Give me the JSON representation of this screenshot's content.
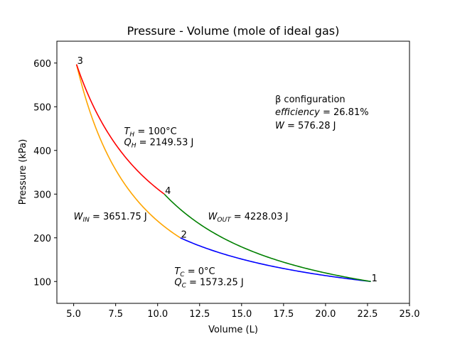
{
  "chart_data": {
    "type": "line",
    "title": "Pressure - Volume (mole of ideal gas)",
    "xlabel": "Volume (L)",
    "ylabel": "Pressure (kPa)",
    "xlim": [
      4.0,
      25.0
    ],
    "ylim": [
      50,
      650
    ],
    "xticks": [
      5.0,
      7.5,
      10.0,
      12.5,
      15.0,
      17.5,
      20.0,
      22.5,
      25.0
    ],
    "xtick_labels": [
      "5.0",
      "7.5",
      "10.0",
      "12.5",
      "15.0",
      "17.5",
      "20.0",
      "22.5",
      "25.0"
    ],
    "yticks": [
      100,
      200,
      300,
      400,
      500,
      600
    ],
    "ytick_labels": [
      "100",
      "200",
      "300",
      "400",
      "500",
      "600"
    ],
    "grid": false,
    "series": [
      {
        "color": "#0000ff",
        "from": "1",
        "to": "2",
        "v_start": 22.7,
        "v_end": 11.35,
        "p_start": 100,
        "p_end": 200
      },
      {
        "color": "#ffa500",
        "from": "2",
        "to": "3",
        "v_start": 11.35,
        "v_end": 5.17,
        "p_start": 200,
        "p_end": 597
      },
      {
        "color": "#ff0000",
        "from": "3",
        "to": "4",
        "v_start": 5.17,
        "v_end": 10.4,
        "p_start": 597,
        "p_end": 300
      },
      {
        "color": "#008000",
        "from": "4",
        "to": "1",
        "v_start": 10.4,
        "v_end": 22.7,
        "p_start": 300,
        "p_end": 100
      }
    ],
    "points": [
      {
        "label": "1",
        "v": 22.7,
        "p": 100
      },
      {
        "label": "2",
        "v": 11.35,
        "p": 200
      },
      {
        "label": "3",
        "v": 5.17,
        "p": 597
      },
      {
        "label": "4",
        "v": 10.4,
        "p": 300
      }
    ],
    "annotations": [
      {
        "id": "th",
        "v": 8.0,
        "p": 445,
        "text": "T_H = 100°C",
        "main": "T",
        "sub": "H",
        "rest": " = 100°C"
      },
      {
        "id": "qh",
        "v": 8.0,
        "p": 420,
        "text": "Q_H = 2149.53 J",
        "main": "Q",
        "sub": "H",
        "rest": " = 2149.53 J"
      },
      {
        "id": "win",
        "v": 5.0,
        "p": 250,
        "text": "W_IN = 3651.75 J",
        "main": "W",
        "sub": "IN",
        "rest": " = 3651.75 J"
      },
      {
        "id": "wout",
        "v": 13.0,
        "p": 250,
        "text": "W_OUT = 4228.03 J",
        "main": "W",
        "sub": "OUT",
        "rest": " = 4228.03 J"
      },
      {
        "id": "tc",
        "v": 11.0,
        "p": 125,
        "text": "T_C = 0°C",
        "main": "T",
        "sub": "C",
        "rest": " = 0°C"
      },
      {
        "id": "qc",
        "v": 11.0,
        "p": 100,
        "text": "Q_C = 1573.25 J",
        "main": "Q",
        "sub": "C",
        "rest": " = 1573.25 J"
      }
    ],
    "info": {
      "config": "β configuration",
      "efficiency_label": "efficiency",
      "efficiency_value": " = 26.81%",
      "work_label": "W",
      "work_value": " = 576.28 J"
    }
  }
}
